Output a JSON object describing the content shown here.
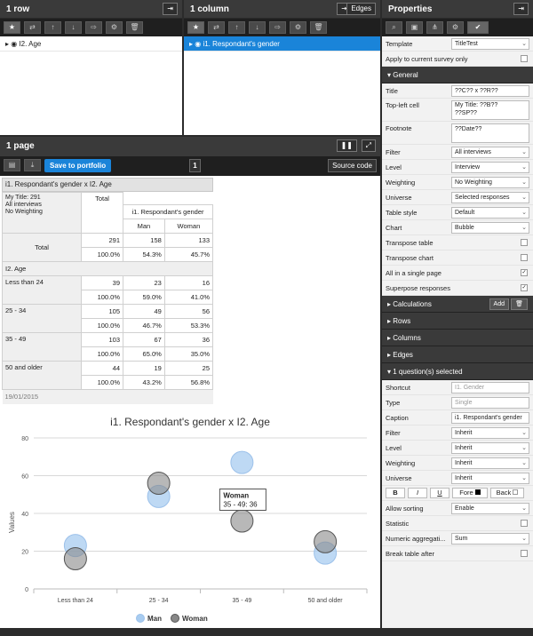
{
  "row_panel": {
    "title": "1 row",
    "item": "I2. Age"
  },
  "col_panel": {
    "title": "1 column",
    "edges": "Edges",
    "item": "i1. Respondant's gender"
  },
  "page_panel": {
    "title": "1 page",
    "save": "Save to portfolio",
    "page_num": "1",
    "source": "Source code"
  },
  "table": {
    "title": "i1. Respondant's gender x I2. Age",
    "info": [
      "My Title: 291",
      "All interviews",
      "No Weighting"
    ],
    "total_hdr": "Total",
    "col_var": "i1. Respondant's gender",
    "col_man": "Man",
    "col_woman": "Woman",
    "total_label": "Total",
    "total_vals": [
      "291",
      "158",
      "133"
    ],
    "total_pcts": [
      "100.0%",
      "54.3%",
      "45.7%"
    ],
    "row_var": "I2. Age",
    "rows": [
      {
        "label": "Less than 24",
        "vals": [
          "39",
          "23",
          "16"
        ],
        "pcts": [
          "100.0%",
          "59.0%",
          "41.0%"
        ]
      },
      {
        "label": "25 - 34",
        "vals": [
          "105",
          "49",
          "56"
        ],
        "pcts": [
          "100.0%",
          "46.7%",
          "53.3%"
        ]
      },
      {
        "label": "35 - 49",
        "vals": [
          "103",
          "67",
          "36"
        ],
        "pcts": [
          "100.0%",
          "65.0%",
          "35.0%"
        ]
      },
      {
        "label": "50 and older",
        "vals": [
          "44",
          "19",
          "25"
        ],
        "pcts": [
          "100.0%",
          "43.2%",
          "56.8%"
        ]
      }
    ],
    "footnote": "19/01/2015"
  },
  "chart_data": {
    "type": "scatter",
    "title": "i1. Respondant's gender x I2. Age",
    "ylabel": "Values",
    "ylim": [
      0,
      80
    ],
    "yticks": [
      0,
      20,
      40,
      60,
      80
    ],
    "categories": [
      "Less than 24",
      "25 - 34",
      "35 - 49",
      "50 and older"
    ],
    "series": [
      {
        "name": "Man",
        "color": "#a8ccf0",
        "values": [
          23,
          49,
          67,
          19
        ]
      },
      {
        "name": "Woman",
        "color": "#888888",
        "values": [
          16,
          56,
          36,
          25
        ]
      }
    ],
    "tooltip": {
      "title": "Woman",
      "text": "35 - 49: 36"
    },
    "legend": "bottom"
  },
  "properties": {
    "title": "Properties",
    "template_label": "Template",
    "template_val": "TitleTest",
    "apply_label": "Apply to current survey only",
    "general": "General",
    "title_label": "Title",
    "title_val": "??C?? x ??R??",
    "topleft_label": "Top-left cell",
    "topleft_val1": "My Title: ??B??",
    "topleft_val2": "??SP??",
    "footnote_label": "Footnote",
    "footnote_val": "??Date??",
    "filter_label": "Filter",
    "filter_val": "All interviews",
    "level_label": "Level",
    "level_val": "Interview",
    "weighting_label": "Weighting",
    "weighting_val": "No Weighting",
    "universe_label": "Universe",
    "universe_val": "Selected responses",
    "tablestyle_label": "Table style",
    "tablestyle_val": "Default",
    "chart_label": "Chart",
    "chart_val": "Bubble",
    "transpose_table": "Transpose table",
    "transpose_chart": "Transpose chart",
    "single_page": "All in a single page",
    "superpose": "Superpose responses",
    "calculations": "Calculations",
    "add": "Add",
    "rows": "Rows",
    "columns": "Columns",
    "edges": "Edges",
    "selected": "1 question(s) selected",
    "shortcut_label": "Shortcut",
    "shortcut_val": "I1. Gender",
    "type_label": "Type",
    "type_val": "Single",
    "caption_label": "Caption",
    "caption_val": "i1. Respondant's gender",
    "q_filter_label": "Filter",
    "q_filter_val": "Inherit",
    "q_level_label": "Level",
    "q_level_val": "Inherit",
    "q_weighting_label": "Weighting",
    "q_weighting_val": "Inherit",
    "q_universe_label": "Universe",
    "q_universe_val": "Inherit",
    "fmt_b": "B",
    "fmt_i": "I",
    "fmt_u": "U",
    "fore": "Fore",
    "back": "Back",
    "sorting_label": "Allow sorting",
    "sorting_val": "Enable",
    "statistic": "Statistic",
    "numagg_label": "Numeric aggregati...",
    "numagg_val": "Sum",
    "breaktable": "Break table after"
  }
}
